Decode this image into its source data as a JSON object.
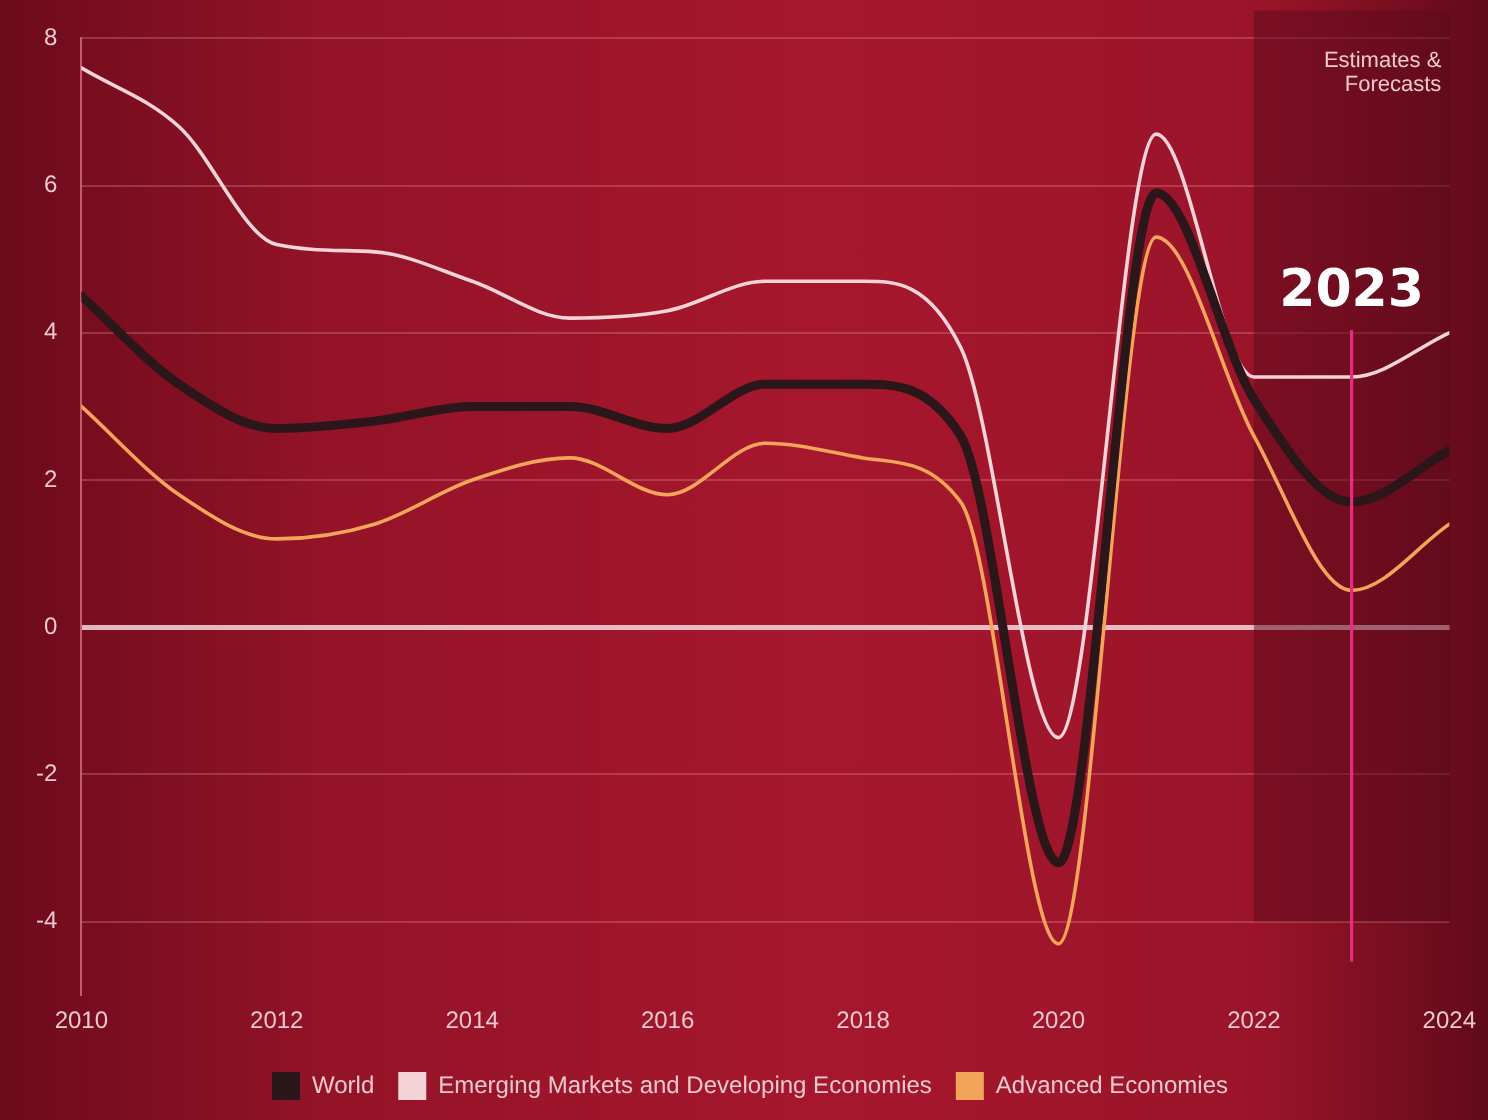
{
  "chart_data": {
    "type": "line",
    "x": [
      2010,
      2011,
      2012,
      2013,
      2014,
      2015,
      2016,
      2017,
      2018,
      2019,
      2020,
      2021,
      2022,
      2023,
      2024
    ],
    "series": [
      {
        "name": "World",
        "color": "#2b1619",
        "values": [
          4.5,
          3.3,
          2.7,
          2.8,
          3.0,
          3.0,
          2.7,
          3.3,
          3.3,
          2.6,
          -3.2,
          5.9,
          3.1,
          1.7,
          2.4
        ]
      },
      {
        "name": "Emerging Markets and Developing Economies",
        "color": "#f3d3d8",
        "values": [
          7.6,
          6.8,
          5.2,
          5.1,
          4.7,
          4.2,
          4.3,
          4.7,
          4.7,
          3.8,
          -1.5,
          6.7,
          3.4,
          3.4,
          4.0
        ]
      },
      {
        "name": "Advanced Economies",
        "color": "#f2a55a",
        "values": [
          3.0,
          1.8,
          1.2,
          1.4,
          2.0,
          2.3,
          1.8,
          2.5,
          2.3,
          1.7,
          -4.3,
          5.3,
          2.6,
          0.5,
          1.4
        ]
      }
    ],
    "xlim": [
      2010,
      2024
    ],
    "xticks": [
      2010,
      2012,
      2014,
      2016,
      2018,
      2020,
      2022,
      2024
    ],
    "ylim": [
      -5,
      8
    ],
    "yticks": [
      -4,
      -2,
      0,
      2,
      4,
      6,
      8
    ],
    "grid": "y",
    "legend": "bottom",
    "marker": "none",
    "bands": [
      {
        "axis": "x",
        "from": 2022,
        "to": 2024,
        "label": "Estimates & Forecasts",
        "color": "#5c0a1c"
      }
    ],
    "ref_lines": [
      {
        "axis": "x",
        "value": 2023,
        "label": "2023",
        "color": "#ea2a7e"
      }
    ]
  }
}
